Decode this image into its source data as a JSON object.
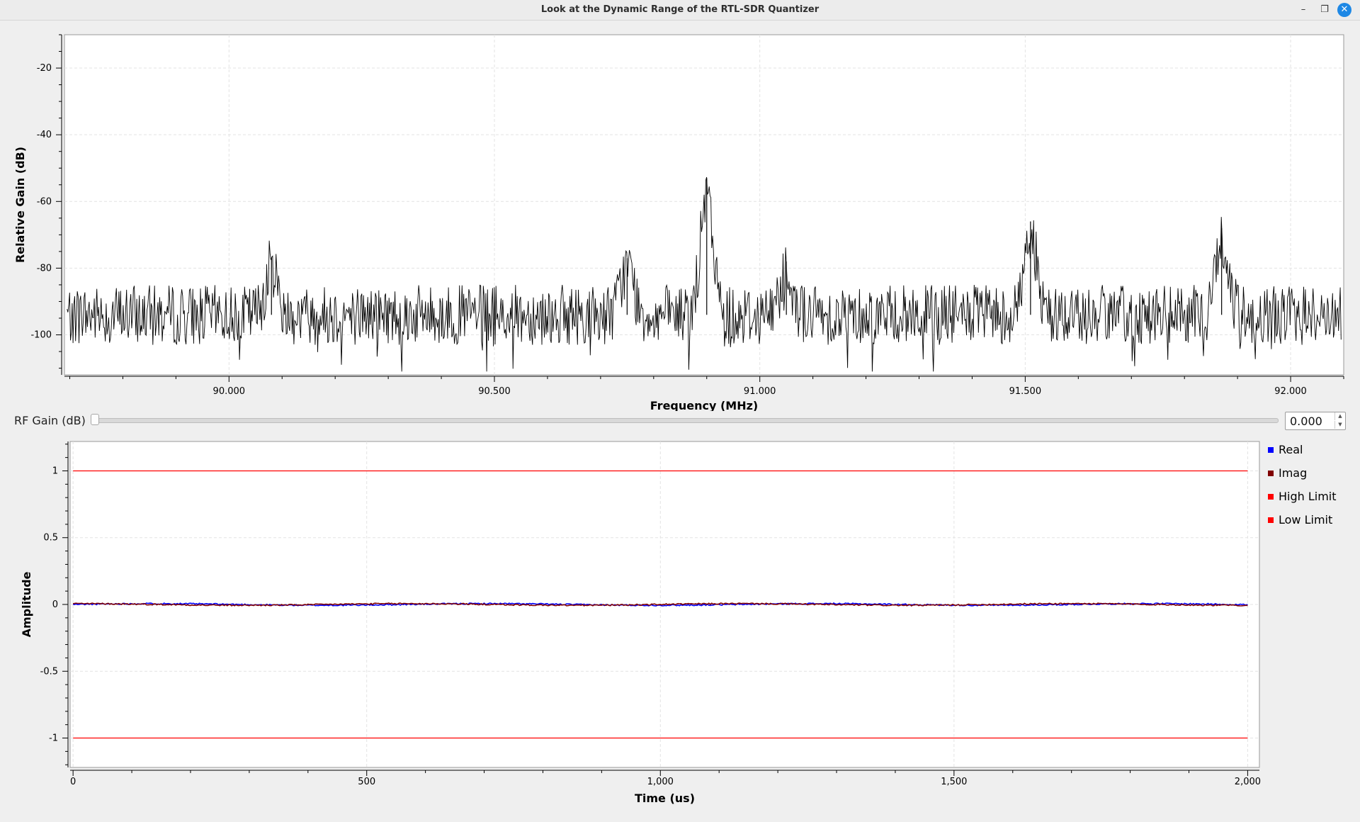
{
  "window": {
    "title": "Look at the Dynamic Range of the RTL-SDR Quantizer",
    "minimize_glyph": "–",
    "maximize_glyph": "❐",
    "close_glyph": "✕"
  },
  "controls": {
    "rf_gain_label": "RF Gain (dB)",
    "rf_gain_value": "0.000",
    "rf_gain_slider_position": 0.0,
    "spin_up_glyph": "▲",
    "spin_down_glyph": "▼"
  },
  "chart_data": [
    {
      "type": "line",
      "xlabel": "Frequency (MHz)",
      "ylabel": "Relative Gain (dB)",
      "xlim": [
        89.69,
        92.1
      ],
      "ylim": [
        -112,
        -10
      ],
      "xticks": [
        90.0,
        90.5,
        91.0,
        91.5,
        92.0
      ],
      "xtick_labels": [
        "90.000",
        "90.500",
        "91.000",
        "91.500",
        "92.000"
      ],
      "yticks": [
        -20,
        -40,
        -60,
        -80,
        -100
      ],
      "ytick_labels": [
        "-20",
        "-40",
        "-60",
        "-80",
        "-100"
      ],
      "grid": true,
      "line_color": "#000000",
      "noise_floor": -94,
      "noise_spread": 9,
      "peaks": [
        {
          "x": 90.08,
          "y": -77
        },
        {
          "x": 90.75,
          "y": -77
        },
        {
          "x": 90.9,
          "y": -53
        },
        {
          "x": 91.05,
          "y": -78
        },
        {
          "x": 91.51,
          "y": -66
        },
        {
          "x": 91.87,
          "y": -68
        }
      ]
    },
    {
      "type": "line",
      "xlabel": "Time (us)",
      "ylabel": "Amplitude",
      "xlim": [
        -5,
        2020
      ],
      "ylim": [
        -1.22,
        1.22
      ],
      "xticks": [
        0,
        500,
        1000,
        1500,
        2000
      ],
      "xtick_labels": [
        "0",
        "500",
        "1,000",
        "1,500",
        "2,000"
      ],
      "yticks": [
        1,
        0.5,
        0,
        -0.5,
        -1
      ],
      "ytick_labels": [
        "1",
        "0.5",
        "0",
        "-0.5",
        "-1"
      ],
      "grid": true,
      "legend_position": "right",
      "series": [
        {
          "name": "Real",
          "color": "#0000ff",
          "x_range": [
            0,
            2000
          ],
          "approx_level": 0.0,
          "ripple": 0.01
        },
        {
          "name": "Imag",
          "color": "#800000",
          "x_range": [
            0,
            2000
          ],
          "approx_level": 0.0,
          "ripple": 0.01
        },
        {
          "name": "High Limit",
          "color": "#ff0000",
          "x": [
            0,
            2000
          ],
          "values": [
            1,
            1
          ]
        },
        {
          "name": "Low Limit",
          "color": "#ff0000",
          "x": [
            0,
            2000
          ],
          "values": [
            -1,
            -1
          ]
        }
      ]
    }
  ]
}
